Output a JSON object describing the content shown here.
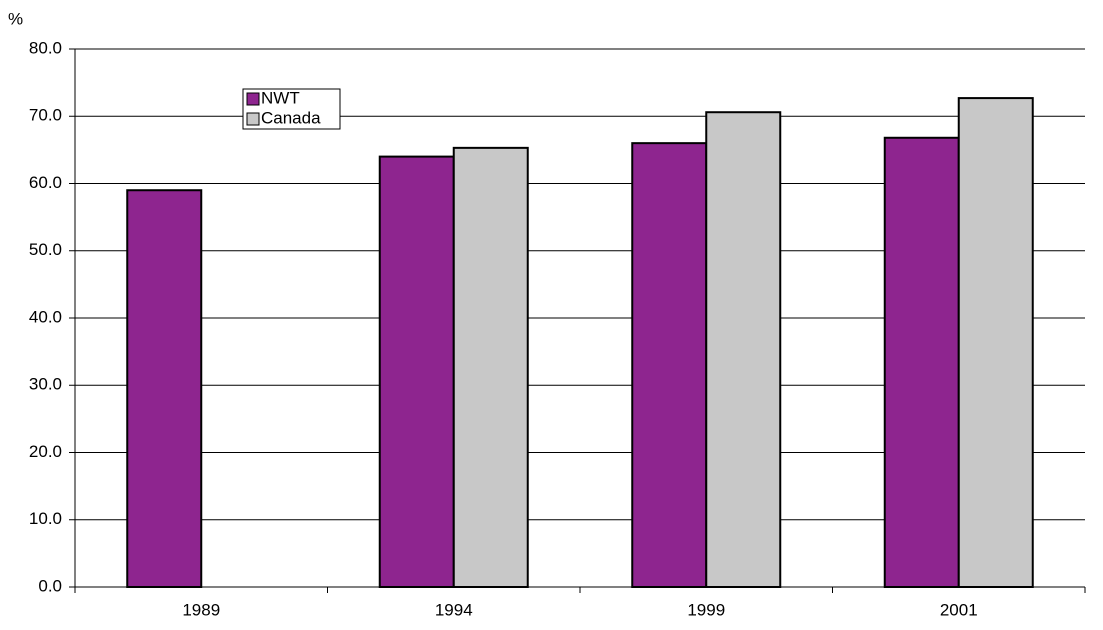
{
  "chart_data": {
    "type": "bar",
    "y_label": "%",
    "categories": [
      "1989",
      "1994",
      "1999",
      "2001"
    ],
    "series": [
      {
        "name": "NWT",
        "color": "#8e258f",
        "values": [
          59.0,
          64.0,
          66.0,
          66.8
        ]
      },
      {
        "name": "Canada",
        "color": "#c8c8c8",
        "values": [
          null,
          65.3,
          70.6,
          72.7
        ]
      }
    ],
    "ylim": [
      0,
      80
    ],
    "yticks": [
      {
        "value": 0,
        "label": "0.0"
      },
      {
        "value": 10,
        "label": "10.0"
      },
      {
        "value": 20,
        "label": "20.0"
      },
      {
        "value": 30,
        "label": "30.0"
      },
      {
        "value": 40,
        "label": "40.0"
      },
      {
        "value": 50,
        "label": "50.0"
      },
      {
        "value": 60,
        "label": "60.0"
      },
      {
        "value": 70,
        "label": "70.0"
      },
      {
        "value": 80,
        "label": "80.0"
      }
    ],
    "grid": true
  }
}
